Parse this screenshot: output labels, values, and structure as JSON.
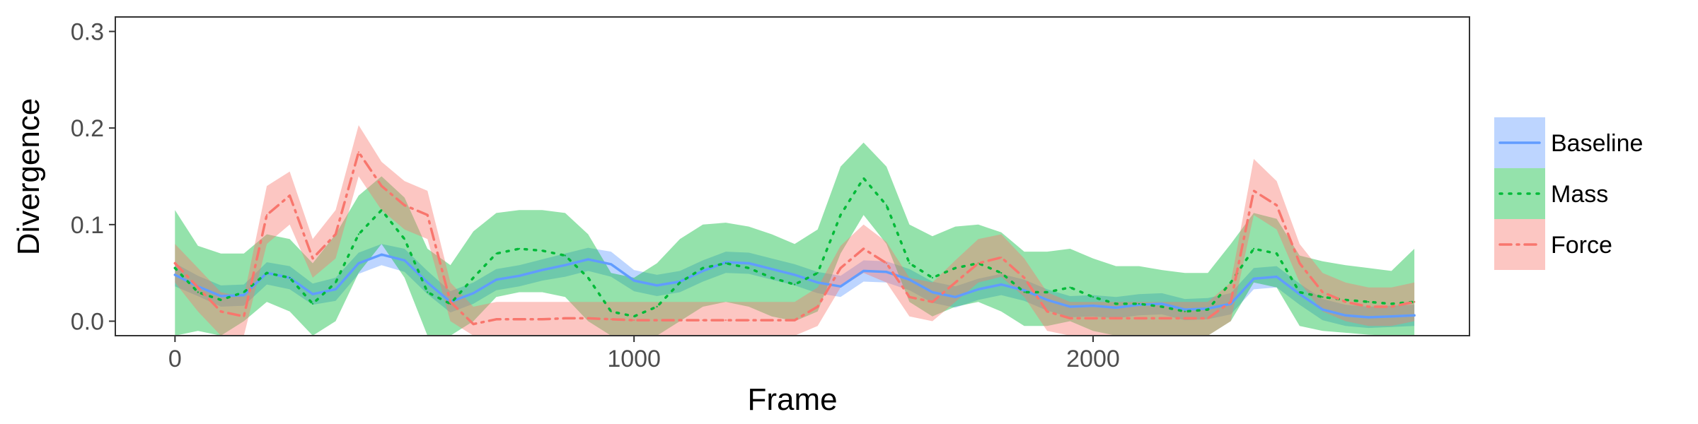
{
  "chart_data": {
    "type": "line",
    "xlabel": "Frame",
    "ylabel": "Divergence",
    "xlim": [
      -130,
      2820
    ],
    "ylim": [
      -0.015,
      0.315
    ],
    "xticks": [
      0,
      1000,
      2000
    ],
    "xtick_labels": [
      "0",
      "1000",
      "2000"
    ],
    "yticks": [
      0.0,
      0.1,
      0.2,
      0.3
    ],
    "ytick_labels": [
      "0.0",
      "0.1",
      "0.2",
      "0.3"
    ],
    "grid": false,
    "legend_position": "right",
    "x": [
      0,
      50,
      100,
      150,
      200,
      250,
      300,
      350,
      400,
      450,
      500,
      550,
      600,
      650,
      700,
      750,
      800,
      850,
      900,
      950,
      1000,
      1050,
      1100,
      1150,
      1200,
      1250,
      1300,
      1350,
      1400,
      1450,
      1500,
      1550,
      1600,
      1650,
      1700,
      1750,
      1800,
      1850,
      1900,
      1950,
      2000,
      2050,
      2100,
      2150,
      2200,
      2250,
      2300,
      2350,
      2400,
      2450,
      2500,
      2550,
      2600,
      2650,
      2700
    ],
    "series": [
      {
        "name": "Baseline",
        "color": "#619CFF",
        "dash": "solid",
        "y": [
          0.048,
          0.036,
          0.026,
          0.027,
          0.05,
          0.045,
          0.028,
          0.033,
          0.06,
          0.069,
          0.063,
          0.04,
          0.02,
          0.029,
          0.043,
          0.047,
          0.053,
          0.058,
          0.064,
          0.059,
          0.042,
          0.037,
          0.041,
          0.052,
          0.061,
          0.06,
          0.054,
          0.048,
          0.04,
          0.036,
          0.052,
          0.051,
          0.043,
          0.03,
          0.025,
          0.033,
          0.038,
          0.032,
          0.022,
          0.015,
          0.016,
          0.014,
          0.017,
          0.018,
          0.012,
          0.013,
          0.018,
          0.044,
          0.046,
          0.028,
          0.012,
          0.006,
          0.004,
          0.005,
          0.006
        ],
        "lower": [
          0.036,
          0.026,
          0.015,
          0.016,
          0.038,
          0.033,
          0.017,
          0.021,
          0.049,
          0.058,
          0.051,
          0.028,
          0.009,
          0.018,
          0.032,
          0.036,
          0.042,
          0.046,
          0.052,
          0.046,
          0.031,
          0.026,
          0.03,
          0.041,
          0.05,
          0.049,
          0.043,
          0.037,
          0.029,
          0.025,
          0.041,
          0.04,
          0.032,
          0.019,
          0.014,
          0.022,
          0.027,
          0.021,
          0.011,
          0.004,
          0.005,
          0.003,
          0.006,
          0.007,
          0.001,
          0.002,
          0.007,
          0.033,
          0.035,
          0.017,
          0.001,
          -0.005,
          -0.007,
          -0.006,
          -0.005
        ],
        "upper": [
          0.06,
          0.047,
          0.037,
          0.038,
          0.061,
          0.057,
          0.039,
          0.045,
          0.071,
          0.08,
          0.075,
          0.052,
          0.031,
          0.04,
          0.054,
          0.058,
          0.064,
          0.07,
          0.076,
          0.072,
          0.053,
          0.048,
          0.052,
          0.063,
          0.072,
          0.071,
          0.065,
          0.059,
          0.051,
          0.047,
          0.063,
          0.062,
          0.054,
          0.041,
          0.036,
          0.044,
          0.049,
          0.043,
          0.033,
          0.026,
          0.027,
          0.025,
          0.028,
          0.029,
          0.023,
          0.024,
          0.029,
          0.055,
          0.057,
          0.039,
          0.023,
          0.017,
          0.015,
          0.016,
          0.017
        ]
      },
      {
        "name": "Mass",
        "color": "#00BA38",
        "dash": "dotted",
        "y": [
          0.055,
          0.03,
          0.022,
          0.03,
          0.05,
          0.045,
          0.018,
          0.04,
          0.09,
          0.115,
          0.085,
          0.03,
          0.018,
          0.045,
          0.07,
          0.075,
          0.073,
          0.068,
          0.045,
          0.01,
          0.005,
          0.015,
          0.04,
          0.055,
          0.06,
          0.055,
          0.045,
          0.038,
          0.05,
          0.11,
          0.148,
          0.12,
          0.06,
          0.045,
          0.055,
          0.06,
          0.05,
          0.03,
          0.03,
          0.035,
          0.025,
          0.018,
          0.018,
          0.015,
          0.01,
          0.012,
          0.04,
          0.075,
          0.07,
          0.03,
          0.025,
          0.022,
          0.02,
          0.018,
          0.02
        ],
        "lower": [
          -0.015,
          -0.01,
          -0.015,
          0.0,
          0.02,
          0.01,
          -0.015,
          0.0,
          0.05,
          0.08,
          0.045,
          -0.015,
          -0.015,
          0.0,
          0.025,
          0.03,
          0.03,
          0.025,
          0.0,
          -0.015,
          -0.015,
          -0.015,
          0.0,
          0.015,
          0.02,
          0.015,
          0.005,
          0.0,
          0.01,
          0.07,
          0.11,
          0.08,
          0.02,
          0.005,
          0.015,
          0.02,
          0.01,
          -0.005,
          -0.005,
          0.0,
          -0.01,
          -0.015,
          -0.015,
          -0.015,
          -0.015,
          -0.015,
          0.0,
          0.04,
          0.035,
          -0.005,
          -0.01,
          -0.012,
          -0.014,
          -0.015,
          -0.015
        ],
        "upper": [
          0.115,
          0.078,
          0.07,
          0.07,
          0.09,
          0.085,
          0.06,
          0.09,
          0.13,
          0.15,
          0.128,
          0.075,
          0.058,
          0.093,
          0.112,
          0.115,
          0.115,
          0.112,
          0.09,
          0.05,
          0.045,
          0.06,
          0.085,
          0.1,
          0.102,
          0.098,
          0.09,
          0.08,
          0.095,
          0.16,
          0.185,
          0.16,
          0.1,
          0.088,
          0.098,
          0.1,
          0.092,
          0.072,
          0.072,
          0.075,
          0.065,
          0.057,
          0.057,
          0.053,
          0.05,
          0.05,
          0.08,
          0.112,
          0.106,
          0.068,
          0.062,
          0.058,
          0.055,
          0.052,
          0.075
        ]
      },
      {
        "name": "Force",
        "color": "#F8766D",
        "dash": "dashdot",
        "y": [
          0.06,
          0.035,
          0.01,
          0.005,
          0.11,
          0.13,
          0.065,
          0.09,
          0.175,
          0.14,
          0.12,
          0.11,
          0.02,
          -0.003,
          0.002,
          0.002,
          0.002,
          0.003,
          0.003,
          0.002,
          0.001,
          0.001,
          0.001,
          0.001,
          0.001,
          0.001,
          0.001,
          0.001,
          0.015,
          0.055,
          0.075,
          0.06,
          0.025,
          0.02,
          0.04,
          0.06,
          0.066,
          0.045,
          0.01,
          0.003,
          0.003,
          0.003,
          0.003,
          0.003,
          0.003,
          0.003,
          0.02,
          0.135,
          0.12,
          0.06,
          0.03,
          0.02,
          0.015,
          0.015,
          0.02
        ],
        "lower": [
          0.04,
          0.01,
          -0.015,
          -0.015,
          0.08,
          0.1,
          0.045,
          0.065,
          0.15,
          0.115,
          0.095,
          0.085,
          0.0,
          -0.015,
          -0.015,
          -0.015,
          -0.015,
          -0.015,
          -0.015,
          -0.015,
          -0.015,
          -0.015,
          -0.015,
          -0.015,
          -0.015,
          -0.015,
          -0.015,
          -0.015,
          -0.005,
          0.035,
          0.05,
          0.04,
          0.005,
          0.0,
          0.02,
          0.04,
          0.046,
          0.025,
          -0.01,
          -0.015,
          -0.015,
          -0.015,
          -0.015,
          -0.015,
          -0.015,
          -0.015,
          0.0,
          0.11,
          0.095,
          0.04,
          0.01,
          0.0,
          -0.005,
          -0.005,
          0.0
        ],
        "upper": [
          0.08,
          0.055,
          0.03,
          0.025,
          0.14,
          0.155,
          0.085,
          0.115,
          0.203,
          0.165,
          0.145,
          0.135,
          0.04,
          0.015,
          0.02,
          0.02,
          0.02,
          0.02,
          0.02,
          0.02,
          0.02,
          0.02,
          0.02,
          0.02,
          0.02,
          0.02,
          0.02,
          0.02,
          0.035,
          0.078,
          0.1,
          0.082,
          0.045,
          0.04,
          0.063,
          0.085,
          0.09,
          0.065,
          0.03,
          0.02,
          0.02,
          0.02,
          0.02,
          0.02,
          0.02,
          0.02,
          0.04,
          0.168,
          0.145,
          0.08,
          0.05,
          0.04,
          0.035,
          0.035,
          0.04
        ]
      }
    ]
  }
}
